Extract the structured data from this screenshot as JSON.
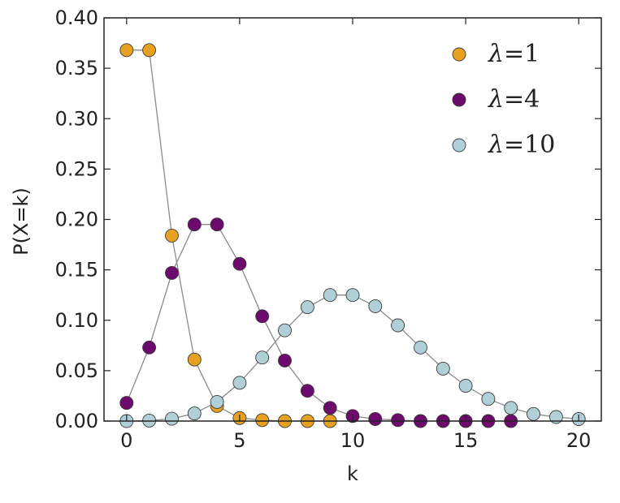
{
  "chart_data": {
    "type": "line",
    "title": "",
    "xlabel": "k",
    "ylabel": "P(X=k)",
    "xlim": [
      -1,
      21
    ],
    "ylim": [
      0,
      0.4
    ],
    "xticks": [
      0,
      5,
      10,
      15,
      20
    ],
    "yticks": [
      "0.00",
      "0.05",
      "0.10",
      "0.15",
      "0.20",
      "0.25",
      "0.30",
      "0.35",
      "0.40"
    ],
    "grid": false,
    "legend_position": "top-right",
    "series": [
      {
        "name": "λ=1",
        "label_symbol": "λ",
        "label_value": "=1",
        "color": "#e8a020",
        "x": [
          0,
          1,
          2,
          3,
          4,
          5,
          6,
          7,
          8,
          9
        ],
        "y": [
          0.368,
          0.368,
          0.184,
          0.061,
          0.015,
          0.003,
          0.001,
          0.0,
          0.0,
          0.0
        ]
      },
      {
        "name": "λ=4",
        "label_symbol": "λ",
        "label_value": "=4",
        "color": "#6d0a6d",
        "x": [
          0,
          1,
          2,
          3,
          4,
          5,
          6,
          7,
          8,
          9,
          10,
          11,
          12,
          13,
          14,
          15,
          16,
          17
        ],
        "y": [
          0.018,
          0.073,
          0.147,
          0.195,
          0.195,
          0.156,
          0.104,
          0.06,
          0.03,
          0.013,
          0.005,
          0.002,
          0.001,
          0.0,
          0.0,
          0.0,
          0.0,
          0.0
        ]
      },
      {
        "name": "λ=10",
        "label_symbol": "λ",
        "label_value": "=10",
        "color": "#b0cfd6",
        "x": [
          0,
          1,
          2,
          3,
          4,
          5,
          6,
          7,
          8,
          9,
          10,
          11,
          12,
          13,
          14,
          15,
          16,
          17,
          18,
          19,
          20
        ],
        "y": [
          0.0,
          0.0005,
          0.0023,
          0.0076,
          0.019,
          0.038,
          0.063,
          0.09,
          0.113,
          0.125,
          0.125,
          0.114,
          0.095,
          0.073,
          0.052,
          0.035,
          0.022,
          0.013,
          0.007,
          0.004,
          0.002
        ]
      }
    ]
  }
}
